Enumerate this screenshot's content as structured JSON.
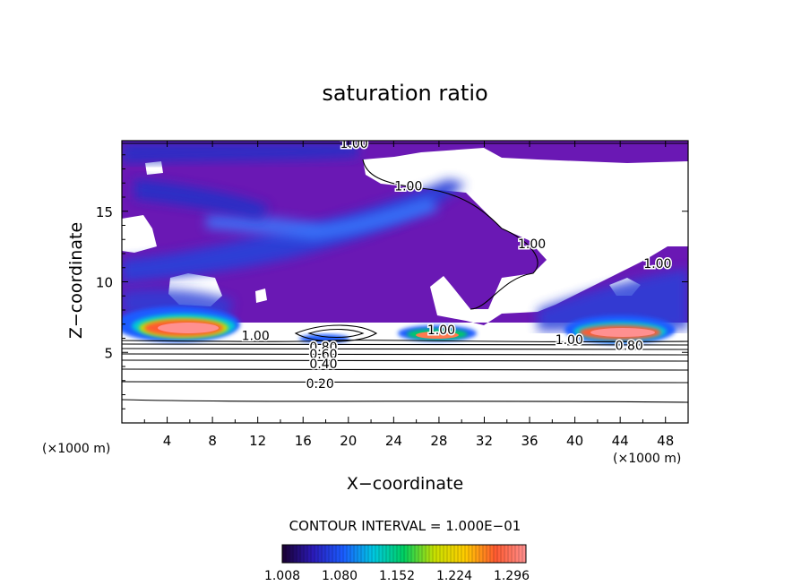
{
  "chart_data": {
    "type": "heatmap",
    "title": "saturation ratio",
    "xlabel": "X−coordinate",
    "ylabel": "Z−coordinate",
    "x_unit_label": "(×1000 m)",
    "y_unit_label": "(×1000 m)",
    "xlim": [
      0,
      50
    ],
    "ylim": [
      0,
      20
    ],
    "x_ticks": [
      "4",
      "8",
      "12",
      "16",
      "20",
      "24",
      "28",
      "32",
      "36",
      "40",
      "44",
      "48"
    ],
    "x_tick_values": [
      4,
      8,
      12,
      16,
      20,
      24,
      28,
      32,
      36,
      40,
      44,
      48
    ],
    "y_ticks": [
      "5",
      "10",
      "15"
    ],
    "y_tick_values": [
      5,
      10,
      15
    ],
    "contour_interval_text": "CONTOUR INTERVAL = 1.000E−01",
    "contour_lines": [
      {
        "label": "0.20",
        "z": 3.0
      },
      {
        "label": "0.40",
        "z": 4.1
      },
      {
        "label": "0.60",
        "z": 4.6
      },
      {
        "label": "0.80",
        "z": 5.2
      },
      {
        "label": "1.00",
        "z": 5.8
      }
    ],
    "contour_labels": [
      {
        "text": "1.00",
        "x": 20.5,
        "z": 19.8
      },
      {
        "text": "1.00",
        "x": 25.3,
        "z": 16.8
      },
      {
        "text": "1.00",
        "x": 36.2,
        "z": 12.7
      },
      {
        "text": "1.00",
        "x": 47.3,
        "z": 11.3
      },
      {
        "text": "1.00",
        "x": 11.8,
        "z": 6.2
      },
      {
        "text": "1.00",
        "x": 28.2,
        "z": 6.6
      },
      {
        "text": "1.00",
        "x": 39.5,
        "z": 5.9
      },
      {
        "text": "0.80",
        "x": 17.8,
        "z": 5.4
      },
      {
        "text": "0.80",
        "x": 44.8,
        "z": 5.5
      },
      {
        "text": "0.60",
        "x": 17.8,
        "z": 4.9
      },
      {
        "text": "0.40",
        "x": 17.8,
        "z": 4.2
      },
      {
        "text": "0.20",
        "x": 17.5,
        "z": 2.8
      }
    ],
    "colorbar": {
      "min": 1.008,
      "max": 1.314,
      "tick_labels": [
        "1.008",
        "1.080",
        "1.152",
        "1.224",
        "1.296"
      ],
      "colormap": [
        "#1a0030",
        "#2b1ab8",
        "#1a5cff",
        "#00c8e0",
        "#00d060",
        "#c8e000",
        "#ffcc00",
        "#ff5a30",
        "#ff9090"
      ]
    },
    "color_field_patches": [
      {
        "region": "upper background",
        "x": [
          0,
          50
        ],
        "z": [
          10,
          20
        ],
        "value": 1.02
      },
      {
        "region": "blue band across upper layer",
        "x": [
          0,
          28
        ],
        "z": [
          11,
          16
        ],
        "value": 1.08
      },
      {
        "region": "blue band, top",
        "x": [
          0,
          20
        ],
        "z": [
          17.5,
          19.5
        ],
        "value": 1.07
      },
      {
        "region": "cloud core left",
        "x": [
          2,
          8
        ],
        "z": [
          6.3,
          7.2
        ],
        "value": 1.3
      },
      {
        "region": "cloud core middle",
        "x": [
          25,
          30
        ],
        "z": [
          6.0,
          6.6
        ],
        "value": 1.26
      },
      {
        "region": "cloud core right",
        "x": [
          41,
          48
        ],
        "z": [
          6.0,
          7.0
        ],
        "value": 1.3
      }
    ]
  }
}
